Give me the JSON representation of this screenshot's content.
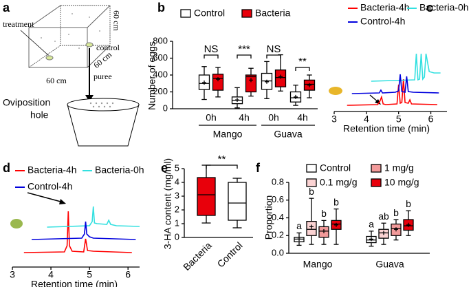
{
  "diagram": {
    "panel": "a",
    "labels": [
      "treatment",
      "60 cm",
      "control",
      "60 cm",
      "puree",
      "60 cm",
      "Oviposition",
      "hole"
    ]
  },
  "chart_data": [
    {
      "panel": "b",
      "type": "box",
      "ylabel": "Number of eggs",
      "ylim": [
        0,
        800
      ],
      "yticks": [
        0,
        200,
        400,
        600,
        800
      ],
      "categories": [
        "0h",
        "4h",
        "0h",
        "4h"
      ],
      "groups": [
        "Mango",
        "Guava"
      ],
      "significance": [
        "NS",
        "***",
        "NS",
        "**"
      ],
      "series": [
        {
          "name": "Control",
          "color": "#ffffff",
          "boxes": [
            {
              "min": 110,
              "q1": 228,
              "median": 300,
              "q3": 400,
              "max": 500,
              "mean": 310
            },
            {
              "min": 10,
              "q1": 60,
              "median": 100,
              "q3": 140,
              "max": 250,
              "mean": 105
            },
            {
              "min": 120,
              "q1": 230,
              "median": 330,
              "q3": 420,
              "max": 560,
              "mean": 320
            },
            {
              "min": 40,
              "q1": 80,
              "median": 130,
              "q3": 200,
              "max": 280,
              "mean": 140
            }
          ]
        },
        {
          "name": "Bacteria",
          "color": "#e8000b",
          "boxes": [
            {
              "min": 140,
              "q1": 220,
              "median": 360,
              "q3": 410,
              "max": 490,
              "mean": 350
            },
            {
              "min": 150,
              "q1": 200,
              "median": 380,
              "q3": 400,
              "max": 480,
              "mean": 340
            },
            {
              "min": 210,
              "q1": 260,
              "median": 370,
              "q3": 460,
              "max": 640,
              "mean": 380
            },
            {
              "min": 130,
              "q1": 220,
              "median": 290,
              "q3": 340,
              "max": 400,
              "mean": 280
            }
          ]
        }
      ]
    },
    {
      "panel": "c",
      "type": "line",
      "xlabel": "Retention time (min)",
      "xlim": [
        3,
        6.5
      ],
      "xticks": [
        3,
        4,
        5,
        6
      ],
      "series": [
        {
          "name": "Bacteria-4h",
          "color": "#ff0000",
          "x": [
            3.4,
            4.35,
            4.42,
            4.47,
            4.52,
            4.6,
            4.95,
            5.0,
            5.05,
            5.1,
            5.15,
            5.2,
            5.3,
            5.35,
            5.4,
            6.2
          ],
          "values": [
            0,
            1,
            6,
            12,
            2,
            1,
            2,
            30,
            3,
            4,
            38,
            4,
            3,
            8,
            2,
            1
          ]
        },
        {
          "name": "Bacteria-0h",
          "color": "#33e0e0",
          "x": [
            4.15,
            5.5,
            5.55,
            5.6,
            5.65,
            5.7,
            5.75,
            5.8,
            5.85,
            5.95,
            6.1,
            6.3
          ],
          "values": [
            0,
            2,
            40,
            2,
            3,
            40,
            3,
            6,
            40,
            14,
            12,
            12
          ]
        },
        {
          "name": "Control-4h",
          "color": "#0000dd",
          "x": [
            3.55,
            4.4,
            4.45,
            4.5,
            4.9,
            5.0,
            5.05,
            5.1,
            5.2,
            5.25,
            5.3,
            5.45,
            6.25
          ],
          "values": [
            0,
            1,
            5,
            1,
            2,
            4,
            28,
            3,
            2,
            25,
            3,
            2,
            1
          ]
        }
      ]
    },
    {
      "panel": "d",
      "type": "line",
      "xlabel": "Retention time (min)",
      "xlim": [
        3,
        6.3
      ],
      "xticks": [
        3,
        4,
        5,
        6
      ],
      "series": [
        {
          "name": "Bacteria-4h",
          "color": "#ff0000",
          "x": [
            3.3,
            4.35,
            4.42,
            4.45,
            4.48,
            4.55,
            4.85,
            4.9,
            4.95,
            5.1,
            6.1
          ],
          "values": [
            0,
            1,
            10,
            60,
            10,
            2,
            1,
            20,
            3,
            2,
            0
          ]
        },
        {
          "name": "Bacteria-0h",
          "color": "#33e0e0",
          "x": [
            3.9,
            5.0,
            5.07,
            5.1,
            5.13,
            5.2,
            5.45,
            5.5,
            5.55,
            5.7,
            6.3
          ],
          "values": [
            0,
            2,
            8,
            30,
            6,
            5,
            4,
            10,
            4,
            2,
            1
          ]
        },
        {
          "name": "Control-4h",
          "color": "#0000dd",
          "x": [
            3.5,
            4.8,
            4.87,
            4.9,
            4.93,
            5.0,
            5.1,
            6.2
          ],
          "values": [
            0,
            2,
            8,
            26,
            8,
            4,
            2,
            0
          ]
        }
      ]
    },
    {
      "panel": "e",
      "type": "box",
      "ylabel": "3-HA content (mg/ml)",
      "ylim": [
        0,
        5
      ],
      "yticks": [
        0,
        1,
        2,
        3,
        4,
        5
      ],
      "categories": [
        "Bacteria",
        "Control"
      ],
      "significance": [
        "**"
      ],
      "series": [
        {
          "colors": [
            "#e8000b",
            "#ffffff"
          ],
          "boxes": [
            {
              "min": 1.05,
              "q1": 1.6,
              "median": 3.1,
              "q3": 4.35,
              "max": 5.25
            },
            {
              "min": 0.7,
              "q1": 1.25,
              "median": 2.5,
              "q3": 4.0,
              "max": 4.3
            }
          ]
        }
      ]
    },
    {
      "panel": "f",
      "type": "box",
      "ylabel": "Proportion",
      "ylim": [
        0,
        0.8
      ],
      "yticks": [
        {
          "value": 0,
          "label": "0.0"
        },
        0.2,
        0.4,
        0.6,
        0.8
      ],
      "categories": [
        "Mango",
        "Guava"
      ],
      "series": [
        {
          "name": "Control",
          "color": "#ffffff",
          "letters": [
            "a",
            "a"
          ],
          "boxes": [
            {
              "min": 0.09,
              "q1": 0.13,
              "median": 0.16,
              "q3": 0.18,
              "max": 0.23,
              "mean": 0.16
            },
            {
              "min": 0.08,
              "q1": 0.12,
              "median": 0.15,
              "q3": 0.19,
              "max": 0.25,
              "mean": 0.16
            }
          ]
        },
        {
          "name": "0.1 mg/g",
          "color": "#fbd3d3",
          "letters": [
            "b",
            "ab"
          ],
          "boxes": [
            {
              "min": 0.1,
              "q1": 0.2,
              "median": 0.27,
              "q3": 0.36,
              "max": 0.62,
              "mean": 0.3
            },
            {
              "min": 0.1,
              "q1": 0.17,
              "median": 0.23,
              "q3": 0.27,
              "max": 0.34,
              "mean": 0.23
            }
          ]
        },
        {
          "name": "1 mg/g",
          "color": "#f29a9a",
          "letters": [
            "b",
            "b"
          ],
          "boxes": [
            {
              "min": 0.1,
              "q1": 0.18,
              "median": 0.25,
              "q3": 0.3,
              "max": 0.37,
              "mean": 0.25
            },
            {
              "min": 0.15,
              "q1": 0.2,
              "median": 0.28,
              "q3": 0.33,
              "max": 0.38,
              "mean": 0.27
            }
          ]
        },
        {
          "name": "10 mg/g",
          "color": "#e8000b",
          "letters": [
            "b",
            "b"
          ],
          "boxes": [
            {
              "min": 0.1,
              "q1": 0.27,
              "median": 0.33,
              "q3": 0.37,
              "max": 0.5,
              "mean": 0.32
            },
            {
              "min": 0.2,
              "q1": 0.26,
              "median": 0.31,
              "q3": 0.38,
              "max": 0.48,
              "mean": 0.32
            }
          ]
        }
      ]
    }
  ]
}
